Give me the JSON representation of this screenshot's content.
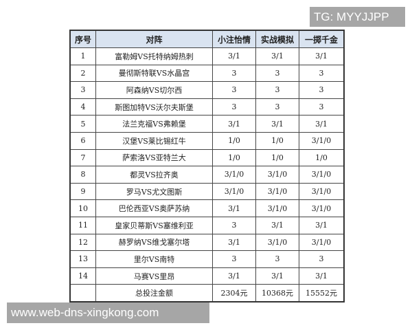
{
  "watermark_tg": "TG: MYYJJPP",
  "watermark_url": "www.web-dns-xingkong.com",
  "table": {
    "headers": [
      "序号",
      "对阵",
      "小注怡情",
      "实战模拟",
      "一掷千金"
    ],
    "rows": [
      [
        "1",
        "富勒姆VS托特纳姆热刺",
        "3/1",
        "3/1",
        "3/1"
      ],
      [
        "2",
        "曼彻斯特联VS水晶宫",
        "3",
        "3",
        "3"
      ],
      [
        "3",
        "阿森纳VS切尔西",
        "3",
        "3",
        "3"
      ],
      [
        "4",
        "斯图加特VS沃尔夫斯堡",
        "3",
        "3",
        "3"
      ],
      [
        "5",
        "法兰克福VS弗赖堡",
        "3/1",
        "3/1",
        "3/1"
      ],
      [
        "6",
        "汉堡VS莱比锡红牛",
        "1/0",
        "1/0",
        "3/1/0"
      ],
      [
        "7",
        "萨索洛VS亚特兰大",
        "1/0",
        "1/0",
        "1/0"
      ],
      [
        "8",
        "都灵VS拉齐奥",
        "3/1/0",
        "3/1/0",
        "3/1/0"
      ],
      [
        "9",
        "罗马VS尤文图斯",
        "3/1/0",
        "3/1/0",
        "3/1/0"
      ],
      [
        "10",
        "巴伦西亚VS奥萨苏纳",
        "3/1",
        "3/1/0",
        "3/1/0"
      ],
      [
        "11",
        "皇家贝蒂斯VS塞维利亚",
        "3",
        "3/1",
        "3/1"
      ],
      [
        "12",
        "赫罗纳VS维戈塞尔塔",
        "3/1",
        "3/1/0",
        "3/1/0"
      ],
      [
        "13",
        "里尔VS南特",
        "3",
        "3",
        "3"
      ],
      [
        "14",
        "马赛VS里昂",
        "3/1",
        "3/1",
        "3/1"
      ]
    ],
    "total": [
      "",
      "总投注金额",
      "2304元",
      "10368元",
      "15552元"
    ]
  }
}
